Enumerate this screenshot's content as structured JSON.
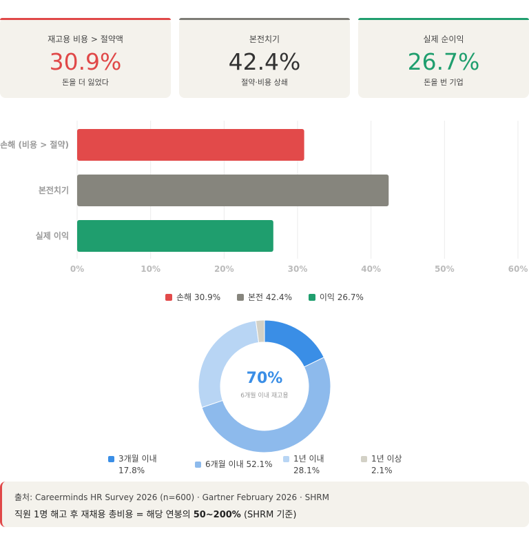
{
  "cards": [
    {
      "label": "재고용 비용 > 절약액",
      "value": "30.9%",
      "sub": "돈을 더 잃었다",
      "color": "#e04848"
    },
    {
      "label": "본전치기",
      "value": "42.4%",
      "sub": "절약·비용 상쇄",
      "color": "#7d7c76"
    },
    {
      "label": "실제 순이익",
      "value": "26.7%",
      "sub": "돈을 번 기업",
      "color": "#1f9e6e"
    }
  ],
  "chart_data": [
    {
      "type": "bar",
      "orientation": "horizontal",
      "categories": [
        "손해 (비용 > 절약)",
        "본전치기",
        "실제 이익"
      ],
      "values": [
        30.9,
        42.4,
        26.7
      ],
      "colors": [
        "#e24a4a",
        "#86857d",
        "#1f9e6e"
      ],
      "xlim": [
        0,
        60
      ],
      "xticks": [
        "0%",
        "10%",
        "20%",
        "30%",
        "40%",
        "50%",
        "60%"
      ],
      "legend": [
        {
          "label": "손해 30.9%",
          "color": "#e24a4a"
        },
        {
          "label": "본전 42.4%",
          "color": "#86857d"
        },
        {
          "label": "이익 26.7%",
          "color": "#1f9e6e"
        }
      ]
    },
    {
      "type": "pie",
      "donut": true,
      "center_value": "70%",
      "center_label": "6개월 이내 재고용",
      "slices": [
        {
          "label": "3개월 이내",
          "value": 17.8,
          "display": "17.8%",
          "color": "#3a8ee6"
        },
        {
          "label": "6개월 이내",
          "value": 52.1,
          "display": "52.1%",
          "color": "#8dbaec"
        },
        {
          "label": "1년 이내",
          "value": 28.1,
          "display": "28.1%",
          "color": "#b8d5f4"
        },
        {
          "label": "1년 이상",
          "value": 2.1,
          "display": "2.1%",
          "color": "#d3d1c6"
        }
      ]
    }
  ],
  "source": {
    "line1": "출처: Careerminds HR Survey 2026 (n=600) · Gartner February 2026 · SHRM",
    "line2_pre": "직원 1명 해고 후 재채용 총비용 = 해당 연봉의 ",
    "line2_bold": "50~200%",
    "line2_post": " (SHRM 기준)"
  }
}
